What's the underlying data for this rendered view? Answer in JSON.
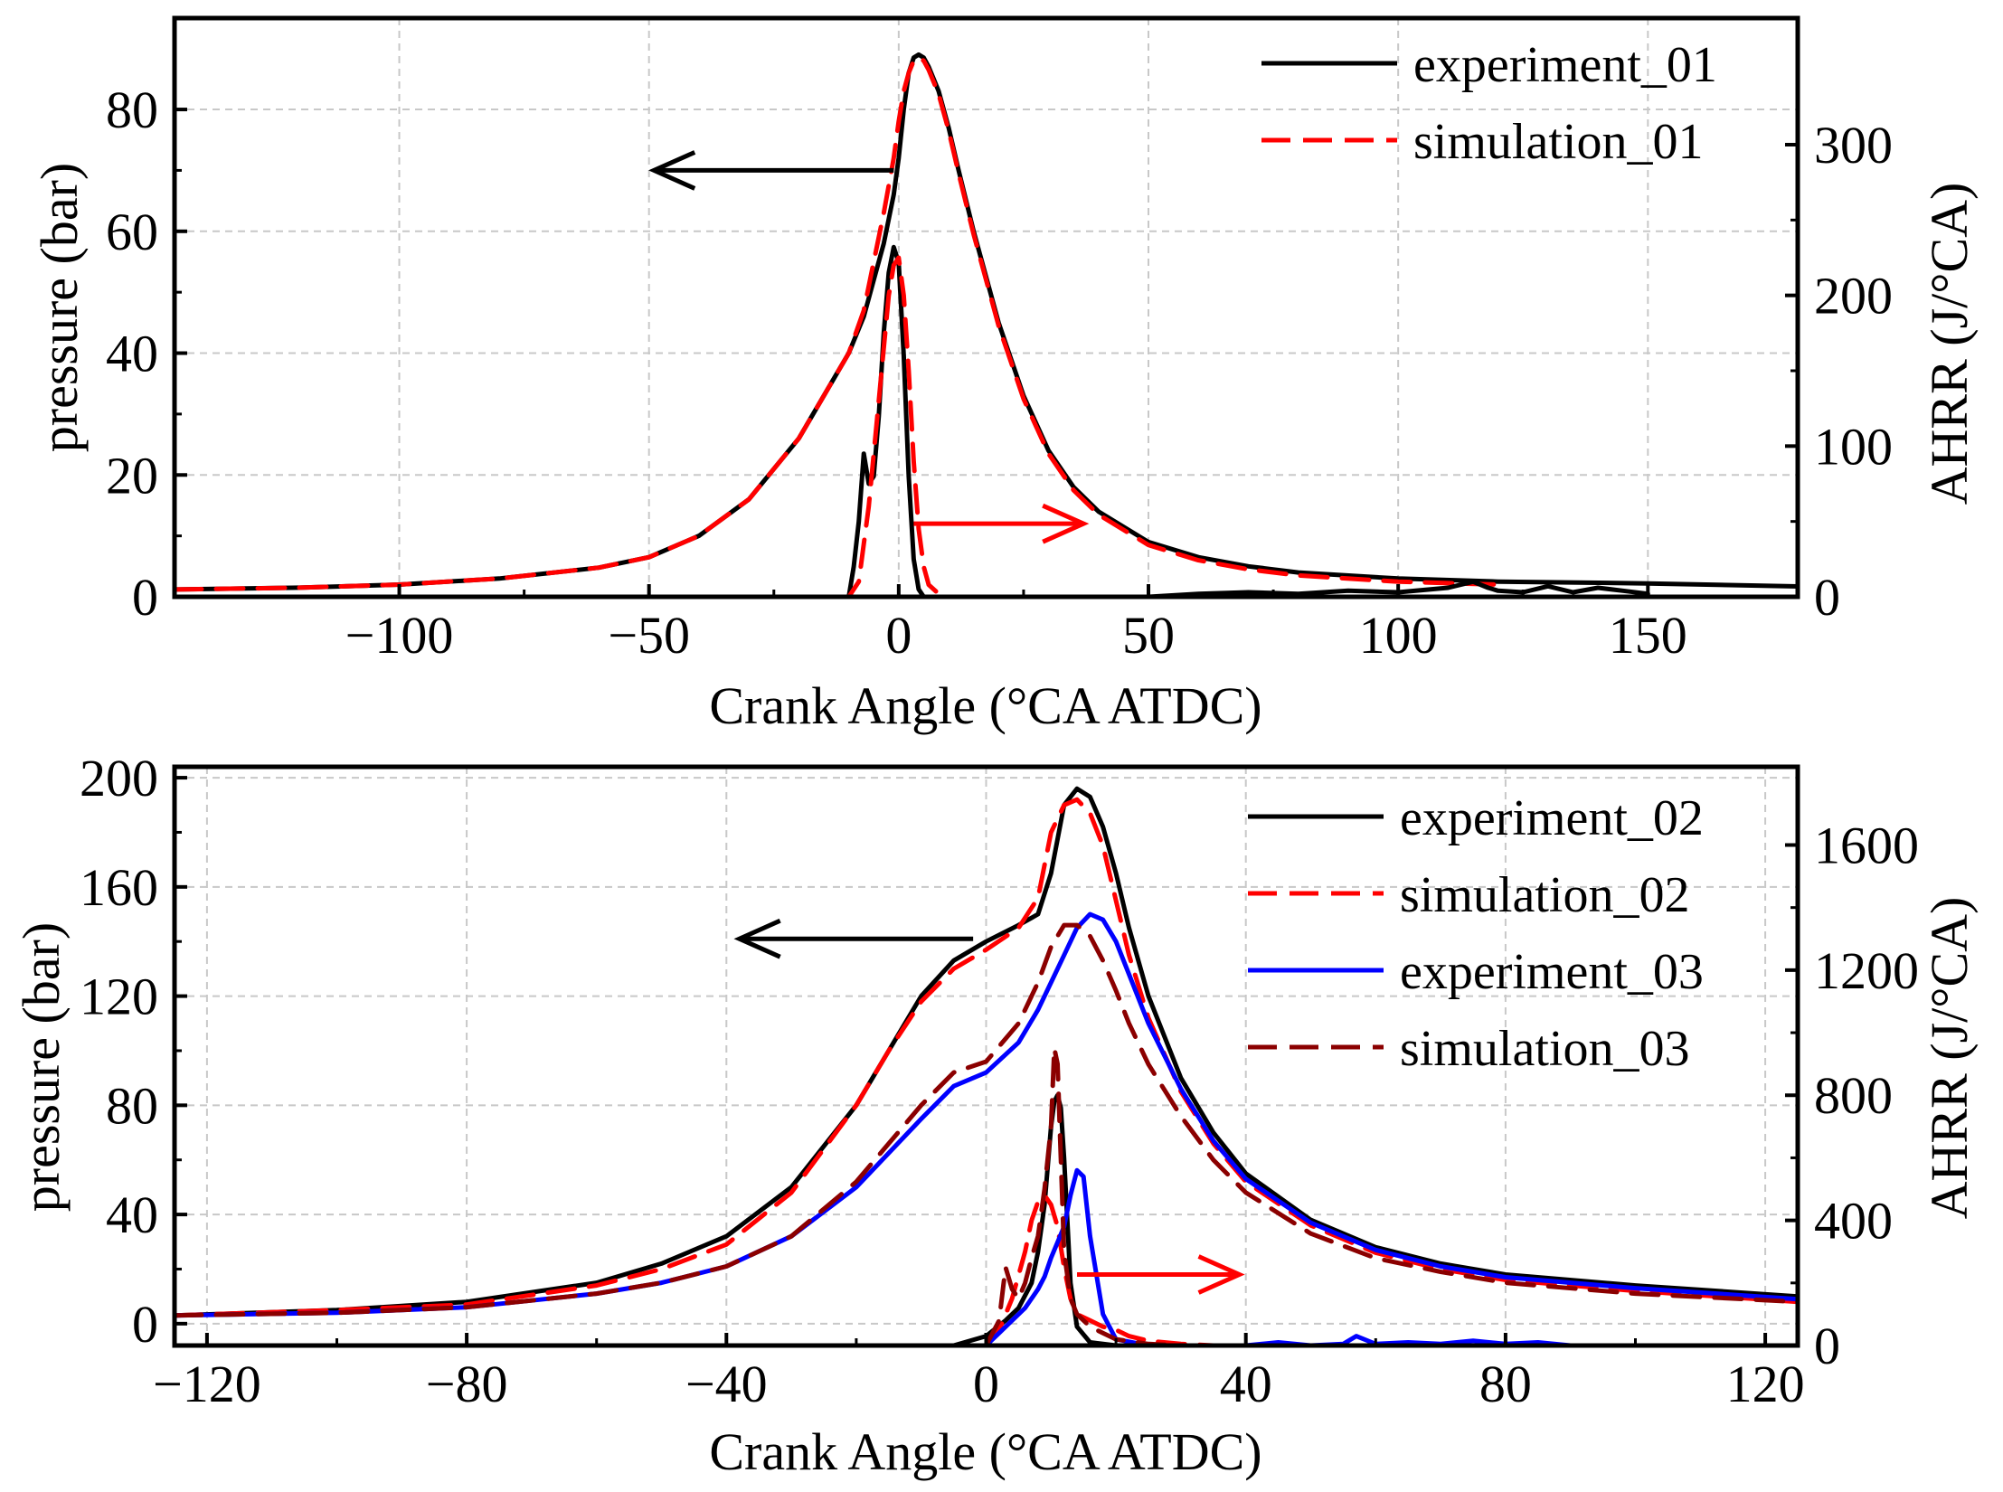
{
  "chart_data": [
    {
      "type": "line",
      "xlabel": "Crank Angle (°CA ATDC)",
      "ylabel": "pressure (bar)",
      "y2label": "AHRR (J/°CA)",
      "xlim": [
        -145,
        180
      ],
      "ylim": [
        0,
        95
      ],
      "y2lim": [
        0,
        384
      ],
      "xticks": [
        -100,
        -50,
        0,
        50,
        100,
        150
      ],
      "xtick_labels": [
        "−100",
        "−50",
        "0",
        "50",
        "100",
        "150"
      ],
      "yticks": [
        0,
        20,
        40,
        60,
        80
      ],
      "ytick_labels": [
        "0",
        "20",
        "40",
        "60",
        "80"
      ],
      "y2ticks": [
        0,
        100,
        200,
        300
      ],
      "y2tick_labels": [
        "0",
        "100",
        "200",
        "300"
      ],
      "grid": true,
      "legend_position": "top-right",
      "arrows": [
        {
          "from": [
            -1,
            70
          ],
          "to": [
            -49,
            70
          ],
          "color": "#000000",
          "points_to": "left axis"
        },
        {
          "from": [
            3,
            12
          ],
          "to": [
            37,
            12
          ],
          "color": "#ff0000",
          "points_to": "right axis"
        }
      ],
      "series": [
        {
          "name": "experiment_01",
          "quantity": "pressure",
          "axis": "left",
          "color": "#000000",
          "dash": "solid",
          "x": [
            -145,
            -120,
            -100,
            -80,
            -60,
            -50,
            -40,
            -30,
            -20,
            -15,
            -10,
            -7,
            -5,
            -3,
            -1,
            0,
            1,
            2,
            3,
            4,
            5,
            6,
            8,
            10,
            12,
            15,
            20,
            25,
            30,
            35,
            40,
            50,
            60,
            70,
            80,
            100,
            120,
            150,
            180
          ],
          "y": [
            1.2,
            1.5,
            2,
            3,
            4.8,
            6.5,
            10,
            16,
            26,
            33,
            40,
            46,
            52,
            58,
            66,
            72,
            80,
            86,
            88.5,
            89,
            88.5,
            87,
            83,
            77,
            70,
            60,
            45,
            33,
            24,
            18,
            14,
            9,
            6.5,
            5,
            4,
            3,
            2.5,
            2.2,
            1.7
          ]
        },
        {
          "name": "simulation_01",
          "quantity": "pressure",
          "axis": "left",
          "color": "#ff0000",
          "dash": "dashed",
          "x": [
            -145,
            -120,
            -100,
            -80,
            -60,
            -50,
            -40,
            -30,
            -20,
            -15,
            -10,
            -7,
            -5,
            -3,
            -1,
            0,
            1,
            2,
            3,
            4,
            5,
            6,
            8,
            10,
            12,
            15,
            20,
            25,
            30,
            35,
            40,
            50,
            60,
            70,
            80,
            100,
            120
          ],
          "y": [
            1.2,
            1.5,
            2,
            3,
            4.8,
            6.5,
            10,
            16,
            26,
            33,
            40,
            47,
            55,
            63,
            72,
            78,
            83,
            86,
            88,
            88.5,
            88,
            86.5,
            82.5,
            76.5,
            69.5,
            59.5,
            44.5,
            32.5,
            23.5,
            17.5,
            13.5,
            8.5,
            6,
            4.5,
            3.5,
            2.5,
            2
          ]
        },
        {
          "name": "experiment_01 AHRR",
          "quantity": "AHRR",
          "axis": "right",
          "color": "#000000",
          "dash": "solid",
          "x": [
            -20,
            -10,
            -9,
            -8,
            -7,
            -6,
            -5,
            -4,
            -3,
            -2,
            -1,
            0,
            1,
            2,
            3,
            4,
            5,
            6,
            10,
            30,
            50,
            60,
            70,
            80,
            90,
            100,
            110,
            115,
            118,
            120,
            125,
            130,
            135,
            140,
            145,
            150
          ],
          "y": [
            0,
            0,
            20,
            50,
            95,
            75,
            80,
            120,
            175,
            215,
            232,
            222,
            160,
            80,
            25,
            5,
            0,
            0,
            0,
            0,
            0,
            2,
            3,
            2,
            4,
            3,
            6,
            10,
            6,
            4,
            3,
            7,
            3,
            6,
            4,
            2
          ]
        },
        {
          "name": "simulation_01 AHRR",
          "quantity": "AHRR",
          "axis": "right",
          "color": "#ff0000",
          "dash": "dashed",
          "x": [
            -20,
            -10,
            -8,
            -6,
            -4,
            -2,
            -1,
            0,
            1,
            2,
            3,
            4,
            5,
            6,
            8,
            10
          ],
          "y": [
            0,
            0,
            10,
            60,
            130,
            200,
            220,
            225,
            200,
            150,
            90,
            45,
            20,
            8,
            2,
            0
          ]
        }
      ]
    },
    {
      "type": "line",
      "xlabel": "Crank Angle (°CA ATDC)",
      "ylabel": "pressure (bar)",
      "y2label": "AHRR (J/°CA)",
      "xlim": [
        -125,
        125
      ],
      "ylim": [
        -8,
        204
      ],
      "y2lim": [
        0,
        1850
      ],
      "xticks": [
        -120,
        -80,
        -40,
        0,
        40,
        80,
        120
      ],
      "xtick_labels": [
        "−120",
        "−80",
        "−40",
        "0",
        "40",
        "80",
        "120"
      ],
      "yticks": [
        0,
        40,
        80,
        120,
        160,
        200
      ],
      "ytick_labels": [
        "0",
        "40",
        "80",
        "120",
        "160",
        "200"
      ],
      "y2ticks": [
        0,
        400,
        800,
        1200,
        1600
      ],
      "y2tick_labels": [
        "0",
        "400",
        "800",
        "1200",
        "1600"
      ],
      "grid": true,
      "legend_position": "top-right",
      "arrows": [
        {
          "from": [
            -2,
            141
          ],
          "to": [
            -38,
            141
          ],
          "color": "#000000",
          "points_to": "left axis"
        },
        {
          "from": [
            14,
            18
          ],
          "to": [
            39,
            18
          ],
          "color": "#ff0000",
          "points_to": "right axis"
        }
      ],
      "series": [
        {
          "name": "experiment_02",
          "quantity": "pressure",
          "axis": "left",
          "color": "#000000",
          "dash": "solid",
          "x": [
            -125,
            -100,
            -80,
            -60,
            -50,
            -40,
            -30,
            -20,
            -15,
            -10,
            -5,
            0,
            5,
            8,
            10,
            12,
            14,
            16,
            18,
            20,
            22,
            25,
            30,
            35,
            40,
            50,
            60,
            70,
            80,
            100,
            125
          ],
          "y": [
            3,
            5,
            8,
            15,
            22,
            32,
            50,
            80,
            100,
            120,
            133,
            140,
            146,
            150,
            165,
            190,
            196,
            193,
            182,
            165,
            145,
            120,
            90,
            70,
            55,
            38,
            28,
            22,
            18,
            14,
            10
          ]
        },
        {
          "name": "simulation_02",
          "quantity": "pressure",
          "axis": "left",
          "color": "#ff0000",
          "dash": "dashed",
          "x": [
            -125,
            -100,
            -80,
            -60,
            -50,
            -40,
            -30,
            -20,
            -15,
            -10,
            -5,
            0,
            5,
            8,
            10,
            12,
            14,
            16,
            18,
            20,
            22,
            25,
            30,
            35,
            40,
            50,
            60,
            70,
            80,
            100,
            125
          ],
          "y": [
            3,
            5,
            7,
            14,
            20,
            29,
            48,
            80,
            100,
            118,
            130,
            137,
            145,
            156,
            180,
            190,
            192,
            187,
            175,
            155,
            135,
            112,
            85,
            66,
            52,
            36,
            26,
            20,
            16,
            12,
            8
          ]
        },
        {
          "name": "experiment_03",
          "quantity": "pressure",
          "axis": "left",
          "color": "#0000ff",
          "dash": "solid",
          "x": [
            -125,
            -100,
            -80,
            -60,
            -50,
            -40,
            -30,
            -20,
            -10,
            -5,
            0,
            5,
            8,
            10,
            12,
            14,
            16,
            18,
            20,
            22,
            25,
            30,
            35,
            40,
            50,
            60,
            70,
            80,
            100,
            125
          ],
          "y": [
            3,
            4,
            6,
            11,
            15,
            21,
            32,
            50,
            75,
            87,
            92,
            103,
            115,
            125,
            135,
            145,
            150,
            148,
            140,
            128,
            110,
            86,
            67,
            53,
            37,
            27,
            21,
            17,
            13,
            9
          ]
        },
        {
          "name": "simulation_03",
          "quantity": "pressure",
          "axis": "left",
          "color": "#8b0000",
          "dash": "dashed",
          "x": [
            -125,
            -100,
            -80,
            -60,
            -50,
            -40,
            -30,
            -20,
            -10,
            -5,
            0,
            5,
            8,
            10,
            12,
            14,
            16,
            18,
            20,
            22,
            25,
            30,
            35,
            40,
            50,
            60,
            70,
            80,
            100,
            125
          ],
          "y": [
            3,
            4,
            6,
            11,
            15,
            21,
            32,
            52,
            80,
            92,
            96,
            110,
            125,
            138,
            146,
            146,
            142,
            133,
            122,
            110,
            95,
            76,
            60,
            48,
            33,
            24,
            19,
            15,
            11,
            8
          ]
        },
        {
          "name": "experiment_02 AHRR",
          "quantity": "AHRR",
          "axis": "right",
          "color": "#000000",
          "dash": "solid",
          "x": [
            -5,
            0,
            3,
            5,
            7,
            8,
            9,
            10,
            10.5,
            11,
            11.5,
            12,
            12.5,
            13,
            14,
            16,
            20
          ],
          "y": [
            0,
            30,
            80,
            120,
            200,
            300,
            450,
            700,
            780,
            800,
            760,
            600,
            400,
            200,
            60,
            10,
            0
          ]
        },
        {
          "name": "simulation_02 AHRR",
          "quantity": "AHRR",
          "axis": "right",
          "color": "#ff0000",
          "dash": "dashed",
          "x": [
            0,
            2,
            4,
            6,
            7,
            8,
            9,
            10,
            11,
            12,
            13,
            14,
            16,
            18,
            20,
            22,
            25,
            30,
            35
          ],
          "y": [
            0,
            50,
            150,
            300,
            400,
            460,
            480,
            450,
            380,
            250,
            150,
            100,
            80,
            60,
            50,
            30,
            15,
            5,
            0
          ]
        },
        {
          "name": "experiment_03 AHRR",
          "quantity": "AHRR",
          "axis": "right",
          "color": "#0000ff",
          "dash": "solid",
          "x": [
            -30,
            0,
            2,
            4,
            6,
            8,
            9,
            10,
            11,
            12,
            13,
            14,
            15,
            16,
            18,
            20,
            25,
            30,
            40,
            45,
            50,
            55,
            57,
            60,
            65,
            70,
            75,
            80,
            85,
            90
          ],
          "y": [
            0,
            0,
            40,
            80,
            120,
            180,
            220,
            280,
            330,
            380,
            480,
            560,
            540,
            350,
            100,
            20,
            0,
            0,
            0,
            10,
            0,
            5,
            30,
            5,
            10,
            5,
            15,
            5,
            10,
            0
          ]
        },
        {
          "name": "simulation_03 AHRR",
          "quantity": "AHRR",
          "axis": "right",
          "color": "#8b0000",
          "dash": "dashed",
          "x": [
            0,
            2,
            3,
            4,
            5,
            6,
            7,
            8,
            9,
            10,
            10.5,
            11,
            11.5,
            12,
            13,
            14,
            16,
            18,
            20,
            25,
            30
          ],
          "y": [
            0,
            80,
            250,
            180,
            150,
            200,
            280,
            350,
            500,
            700,
            950,
            900,
            600,
            300,
            150,
            100,
            60,
            40,
            20,
            5,
            0
          ]
        }
      ]
    }
  ]
}
